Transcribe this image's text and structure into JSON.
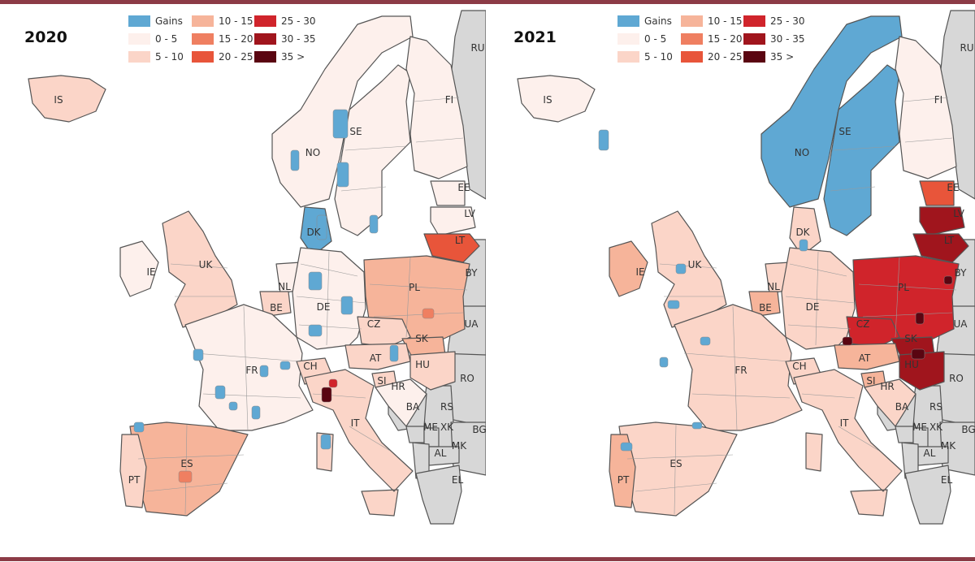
{
  "figure": {
    "left_year": "2020",
    "right_year": "2021"
  },
  "legend": [
    {
      "label": "Gains",
      "color": "#5fa8d3"
    },
    {
      "label": "0 - 5",
      "color": "#fdf0ec"
    },
    {
      "label": "5 - 10",
      "color": "#fbd5c8"
    },
    {
      "label": "10 - 15",
      "color": "#f6b49a"
    },
    {
      "label": "15 - 20",
      "color": "#ef7f61"
    },
    {
      "label": "20 - 25",
      "color": "#e8553a"
    },
    {
      "label": "25 - 30",
      "color": "#d0242b"
    },
    {
      "label": "30 - 35",
      "color": "#a0151d"
    },
    {
      "label": "35 >",
      "color": "#5a0511"
    }
  ],
  "colors": {
    "sea": "#ffffff",
    "non_eu": "#d7d7d7",
    "border": "#555555"
  },
  "countries": {
    "IS": "IS",
    "FI": "FI",
    "SE": "SE",
    "NO": "NO",
    "EE": "EE",
    "LV": "LV",
    "LT": "LT",
    "DK": "DK",
    "IE": "IE",
    "UK": "UK",
    "NL": "NL",
    "BE": "BE",
    "DE": "DE",
    "PL": "PL",
    "CZ": "CZ",
    "SK": "SK",
    "AT": "AT",
    "HU": "HU",
    "FR": "FR",
    "CH": "CH",
    "SI": "SI",
    "HR": "HR",
    "IT": "IT",
    "ES": "ES",
    "PT": "PT",
    "RU": "RU",
    "BY": "BY",
    "UA": "UA",
    "RO": "RO",
    "BA": "BA",
    "RS": "RS",
    "BG": "BG",
    "ME": "ME",
    "XK": "XK",
    "MK": "MK",
    "AL": "AL",
    "EL": "EL"
  },
  "map_2020": {
    "IS": "5 - 10",
    "FI": "0 - 5",
    "SE": "0 - 5",
    "NO": "0 - 5",
    "EE": "0 - 5",
    "LV": "0 - 5",
    "LT": "20 - 25",
    "DK": "Gains",
    "IE": "0 - 5",
    "UK": "5 - 10",
    "NL": "0 - 5",
    "BE": "5 - 10",
    "DE": "0 - 5",
    "PL": "10 - 15",
    "CZ": "5 - 10",
    "SK": "10 - 15",
    "AT": "5 - 10",
    "HU": "5 - 10",
    "FR": "0 - 5",
    "CH": "5 - 10",
    "SI": "5 - 10",
    "HR": "0 - 5",
    "IT": "5 - 10",
    "ES": "10 - 15",
    "PT": "5 - 10"
  },
  "map_2021": {
    "IS": "0 - 5",
    "FI": "0 - 5",
    "SE": "Gains",
    "NO": "Gains",
    "EE": "20 - 25",
    "LV": "30 - 35",
    "LT": "30 - 35",
    "DK": "5 - 10",
    "IE": "10 - 15",
    "UK": "5 - 10",
    "NL": "5 - 10",
    "BE": "10 - 15",
    "DE": "5 - 10",
    "PL": "25 - 30",
    "CZ": "25 - 30",
    "SK": "30 - 35",
    "AT": "10 - 15",
    "HU": "30 - 35",
    "FR": "5 - 10",
    "CH": "5 - 10",
    "SI": "10 - 15",
    "HR": "5 - 10",
    "IT": "5 - 10",
    "ES": "5 - 10",
    "PT": "10 - 15"
  }
}
